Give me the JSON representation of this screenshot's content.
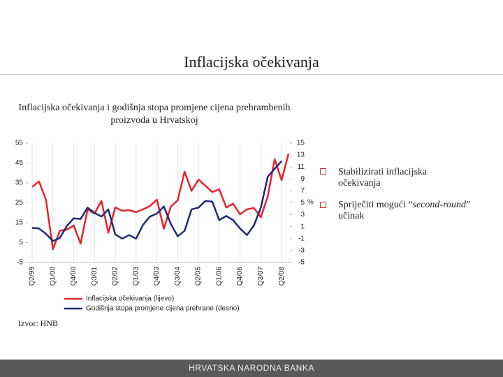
{
  "slide": {
    "title": "Inflacijska očekivanja",
    "bullets": [
      [
        "Stabilizirati inflacijska očekivanja"
      ],
      [
        "Spriječiti mogući “",
        "second-round",
        "” učinak"
      ]
    ],
    "source": "Izvor: HNB",
    "footer": "HRVATSKA NARODNA BANKA"
  },
  "chart_data": {
    "type": "line",
    "title": "Inflacijska očekivanja i godišnja stopa promjene cijena prehrambenih proizvoda u Hrvatskoj",
    "categories": [
      "Q2/99",
      null,
      null,
      "Q1/00",
      null,
      null,
      "Q4/00",
      null,
      null,
      "Q3/01",
      null,
      null,
      "Q2/02",
      null,
      null,
      "Q1/03",
      null,
      null,
      "Q4/03",
      null,
      null,
      "Q3/04",
      null,
      null,
      "Q2/05",
      null,
      null,
      "Q1/06",
      null,
      null,
      "Q4/06",
      null,
      null,
      "Q3/07",
      null,
      null,
      "Q2/08",
      null
    ],
    "series": [
      {
        "name": "Inflacijska očekivanja (lijevo)",
        "color": "#e8232a",
        "values": [
          33,
          35.7,
          26.5,
          1.7,
          11,
          11.5,
          13.6,
          4.5,
          21.7,
          19.6,
          26,
          10,
          22.7,
          21,
          21.3,
          20.3,
          21.7,
          23.4,
          26.6,
          12,
          23,
          26.2,
          40.6,
          31,
          36.7,
          33.6,
          30.4,
          31.8,
          22.7,
          24.5,
          19.2,
          21.7,
          22.4,
          17.8,
          28.3,
          46.9,
          36.4,
          49.7
        ]
      },
      {
        "name": "Godišnja stopa promjene cijena prehrane (desno)",
        "color": "#1f2a7a",
        "axis": "y2",
        "values": [
          0.8,
          0.7,
          -0.2,
          -1.4,
          -0.9,
          1.1,
          2.4,
          2.3,
          4.2,
          3.3,
          2.7,
          3.9,
          -0.3,
          -1,
          -0.4,
          -1,
          1.3,
          2.7,
          3.2,
          4.4,
          1.5,
          -0.6,
          0.3,
          3.9,
          4.2,
          5.3,
          5.2,
          2.1,
          2.8,
          2.1,
          0.7,
          -0.4,
          1.2,
          4.2,
          9.4,
          10.7,
          12,
          null
        ]
      }
    ],
    "ylim": [
      -5,
      55
    ],
    "yticks": [
      -5,
      5,
      15,
      25,
      35,
      45,
      55
    ],
    "y2lim": [
      -5,
      15
    ],
    "y2ticks": [
      -5,
      -3,
      -1,
      1,
      3,
      5,
      7,
      9,
      11,
      13,
      15
    ],
    "y2label": "%",
    "grid": true
  }
}
